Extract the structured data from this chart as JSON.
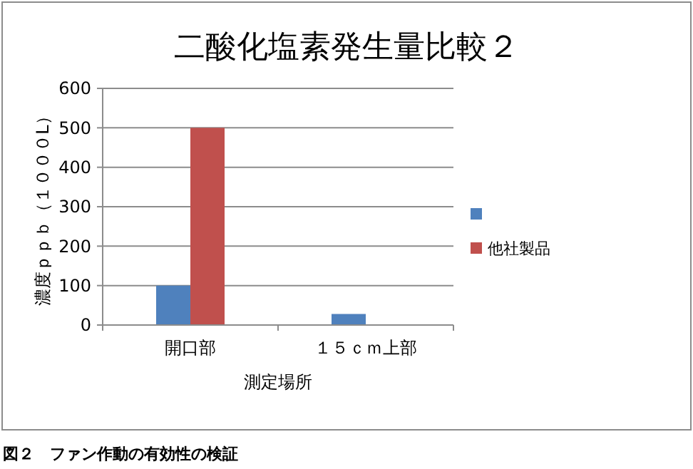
{
  "chart_data": {
    "type": "bar",
    "title": "二酸化塩素発生量比較２",
    "xlabel": "測定場所",
    "ylabel": "濃度ｐｐｂ（１０００L）",
    "categories": [
      "開口部",
      "１５ｃｍ上部"
    ],
    "series": [
      {
        "color": "#4f81bd",
        "values": [
          100,
          28
        ]
      },
      {
        "name": "他社製品",
        "color": "#c0504d",
        "values": [
          500,
          null
        ]
      }
    ],
    "ylim": [
      0,
      600
    ],
    "yticks": [
      0,
      100,
      200,
      300,
      400,
      500,
      600
    ],
    "grid": "y",
    "legend": "right",
    "annotations": [
      "図２　ファン作動の有効性の検証"
    ]
  }
}
